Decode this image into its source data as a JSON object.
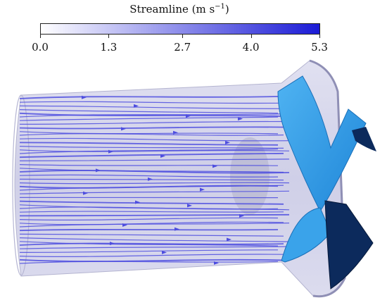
{
  "colorbar": {
    "title": "Streamline (m s",
    "title_exponent": "−1",
    "title_close": ")",
    "colors": {
      "min": "#ffffff",
      "max": "#1b1bd6"
    },
    "ticks": [
      {
        "value": 0.0,
        "label": "0.0"
      },
      {
        "value": 1.3,
        "label": "1.3"
      },
      {
        "value": 2.7,
        "label": "2.7"
      },
      {
        "value": 4.0,
        "label": "4.0"
      },
      {
        "value": 5.3,
        "label": "5.3"
      }
    ],
    "range": [
      0.0,
      5.3
    ]
  },
  "scene": {
    "duct_color": "#c9c9e6",
    "streamline_color": "#4d4ddf",
    "blade_light": "#2e9be8",
    "blade_dark": "#0b2b5e"
  }
}
